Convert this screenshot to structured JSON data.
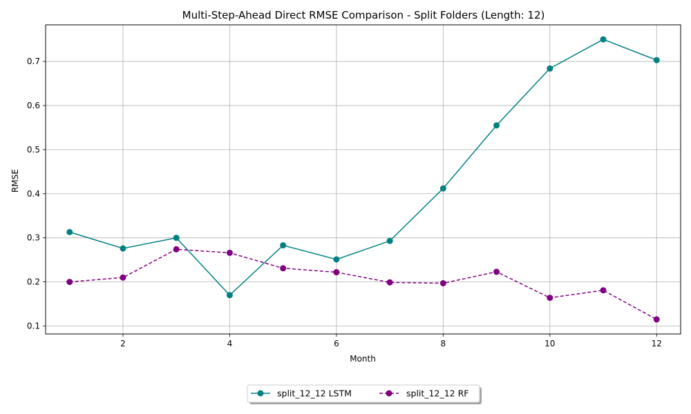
{
  "chart_data": {
    "type": "line",
    "title": "Multi-Step-Ahead Direct RMSE Comparison - Split Folders (Length: 12)",
    "xlabel": "Month",
    "ylabel": "RMSE",
    "xlim": [
      0.55,
      12.45
    ],
    "ylim": [
      0.082,
      0.783
    ],
    "xticks": [
      2,
      4,
      6,
      8,
      10,
      12
    ],
    "yticks": [
      0.1,
      0.2,
      0.3,
      0.4,
      0.5,
      0.6,
      0.7
    ],
    "xtick_labels": [
      "2",
      "4",
      "6",
      "8",
      "10",
      "12"
    ],
    "ytick_labels": [
      "0.1",
      "0.2",
      "0.3",
      "0.4",
      "0.5",
      "0.6",
      "0.7"
    ],
    "grid": true,
    "legend_position": "bottom-center, below plot",
    "x": [
      1,
      2,
      3,
      4,
      5,
      6,
      7,
      8,
      9,
      10,
      11,
      12
    ],
    "series": [
      {
        "name": "split_12_12 LSTM",
        "color": "#008080",
        "line_style": "solid",
        "marker": "circle",
        "values": [
          0.313,
          0.276,
          0.3,
          0.17,
          0.283,
          0.251,
          0.293,
          0.412,
          0.555,
          0.684,
          0.75,
          0.703
        ]
      },
      {
        "name": "split_12_12 RF",
        "color": "#800080",
        "line_style": "dashed",
        "marker": "circle",
        "values": [
          0.2,
          0.21,
          0.274,
          0.266,
          0.231,
          0.222,
          0.199,
          0.197,
          0.223,
          0.164,
          0.181,
          0.115
        ]
      }
    ]
  }
}
